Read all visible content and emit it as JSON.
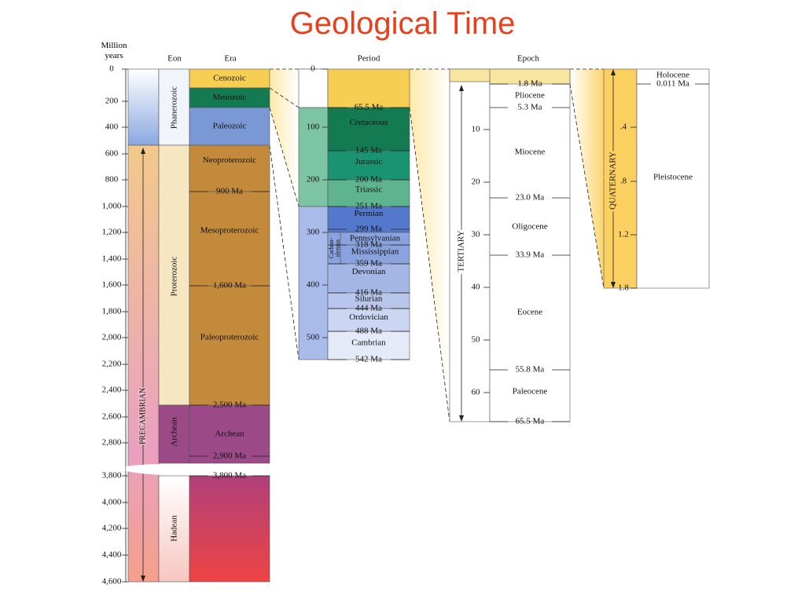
{
  "title": "Geological Time",
  "headers": {
    "million_years": "Million years",
    "eon": "Eon",
    "era": "Era",
    "period": "Period",
    "epoch": "Epoch"
  },
  "left_axis": [
    "0",
    "200",
    "400",
    "600",
    "800",
    "1,000",
    "1,200",
    "1,400",
    "1,600",
    "1,800",
    "2,000",
    "2,200",
    "2,400",
    "2,600",
    "2,800",
    "3,800",
    "4,000",
    "4,200",
    "4,400",
    "4,600"
  ],
  "precambrian": "PRECAMBRIAN",
  "eons": [
    "Phanerozoic",
    "Proterozoic",
    "Archean",
    "Hadean"
  ],
  "eras": [
    "Cenozoic",
    "Mesozoic",
    "Paleozoic",
    "Neoproterozoic",
    "Mesoproterozoic",
    "Paleoproterozoic",
    "Archean"
  ],
  "era_boundaries": [
    "900 Ma",
    "1,600 Ma",
    "2,500 Ma",
    "2,900 Ma",
    "3,800 Ma"
  ],
  "period_axis": [
    "0",
    "100",
    "200",
    "300",
    "400",
    "500"
  ],
  "periods": [
    "Cretaceous",
    "Jurassic",
    "Triassic",
    "Permian",
    "Pennsylvanian",
    "Mississippian",
    "Devonian",
    "Silurian",
    "Ordovician",
    "Cambrian"
  ],
  "carboniferous": [
    "Carbon-",
    "iferous"
  ],
  "period_boundaries": [
    "65.5 Ma",
    "145 Ma",
    "200 Ma",
    "251 Ma",
    "299 Ma",
    "318 Ma",
    "359 Ma",
    "416 Ma",
    "444 Ma",
    "488 Ma",
    "542 Ma"
  ],
  "tertiary": {
    "label": "TERTIARY",
    "axis": [
      "10",
      "20",
      "30",
      "40",
      "50",
      "60"
    ],
    "epochs": [
      "Pliocene",
      "Miocene",
      "Oligocene",
      "Eocene",
      "Paleocene"
    ],
    "boundaries": [
      "1.8 Ma",
      "5.3 Ma",
      "23.0 Ma",
      "33.9 Ma",
      "55.8 Ma",
      "65.5 Ma"
    ]
  },
  "quaternary": {
    "label": "QUATERNARY",
    "axis": [
      ".4",
      ".8",
      "1.2",
      "1.8"
    ],
    "epochs": [
      "Holocene",
      "Pleistocene"
    ],
    "boundaries": [
      "0.011 Ma"
    ]
  }
}
